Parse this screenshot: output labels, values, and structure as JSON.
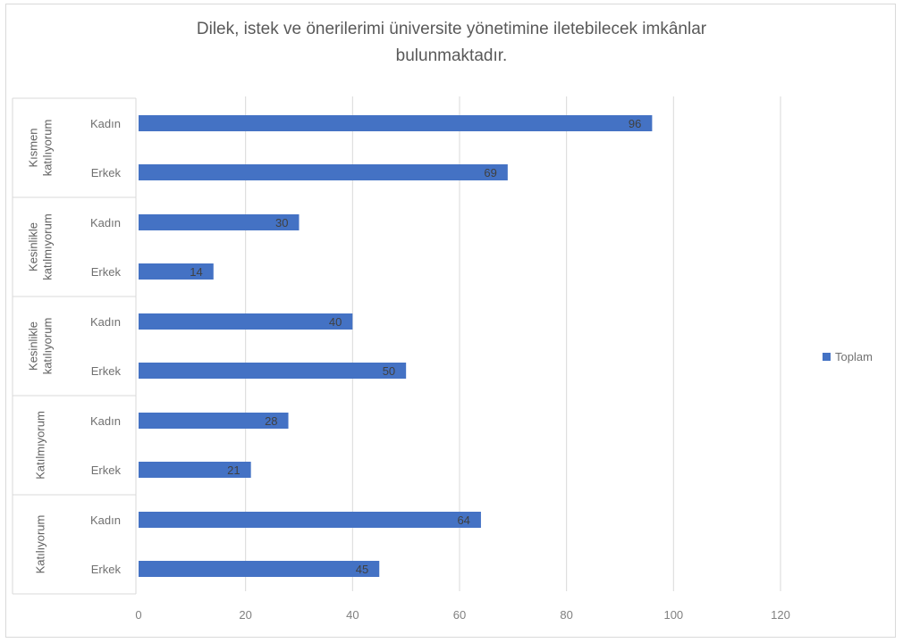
{
  "chart_data": {
    "type": "bar",
    "orientation": "horizontal",
    "title": "Dilek, istek ve önerilerimi üniversite yönetimine iletebilecek imkânlar bulunmaktadır.",
    "title_lines": [
      "Dilek, istek ve önerilerimi üniversite yönetimine iletebilecek imkânlar",
      "bulunmaktadır."
    ],
    "xlim": [
      0,
      120
    ],
    "x_ticks": [
      0,
      20,
      40,
      60,
      80,
      100,
      120
    ],
    "grid": true,
    "legend_position": "right",
    "bar_color": "#4472c4",
    "groups": [
      {
        "name_lines": [
          "Kısmen",
          "katılıyorum"
        ],
        "categories": [
          "Kadın",
          "Erkek"
        ],
        "values": [
          96,
          69
        ]
      },
      {
        "name_lines": [
          "Kesinlikle",
          "katılmıyorum"
        ],
        "categories": [
          "Kadın",
          "Erkek"
        ],
        "values": [
          30,
          14
        ]
      },
      {
        "name_lines": [
          "Kesinlikle",
          "katılıyorum"
        ],
        "categories": [
          "Kadın",
          "Erkek"
        ],
        "values": [
          40,
          50
        ]
      },
      {
        "name_lines": [
          "Katılmıyorum"
        ],
        "categories": [
          "Kadın",
          "Erkek"
        ],
        "values": [
          28,
          21
        ]
      },
      {
        "name_lines": [
          "Katılıyorum"
        ],
        "categories": [
          "Kadın",
          "Erkek"
        ],
        "values": [
          64,
          45
        ]
      }
    ],
    "series": [
      {
        "name": "Toplam"
      }
    ]
  }
}
